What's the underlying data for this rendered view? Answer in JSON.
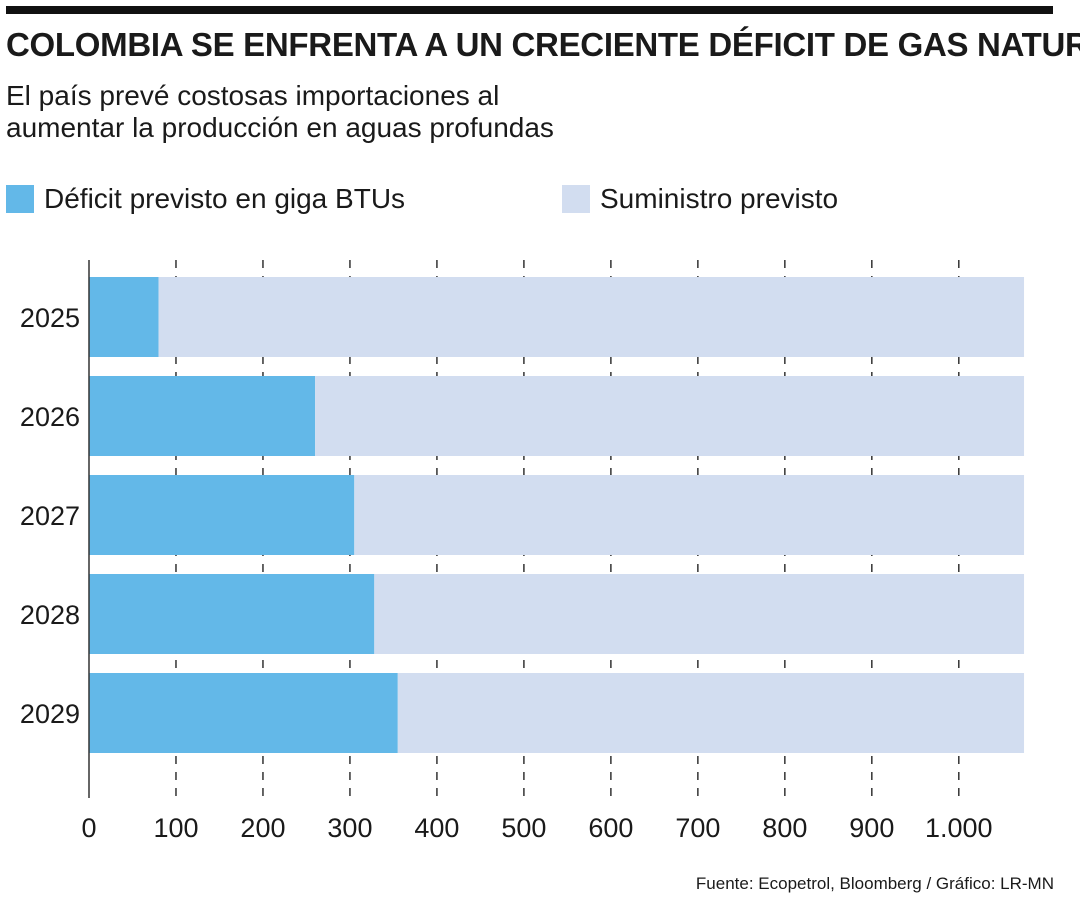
{
  "header": {
    "title": "COLOMBIA SE ENFRENTA A UN CRECIENTE DÉFICIT DE GAS NATURAL",
    "subtitle_line1": "El país prevé costosas importaciones al",
    "subtitle_line2": "aumentar la producción en aguas profundas"
  },
  "legend": [
    {
      "label": "Déficit previsto en giga BTUs",
      "color": "#63b8e8"
    },
    {
      "label": "Suministro previsto",
      "color": "#d2ddf0"
    }
  ],
  "footer": {
    "source": "Fuente: Ecopetrol, Bloomberg / Gráfico: LR-MN"
  },
  "chart_data": {
    "type": "bar",
    "orientation": "horizontal",
    "stacked": true,
    "categories": [
      "2025",
      "2026",
      "2027",
      "2028",
      "2029"
    ],
    "series": [
      {
        "name": "Déficit previsto en giga BTUs",
        "values": [
          80,
          260,
          305,
          328,
          355
        ]
      },
      {
        "name": "Suministro previsto",
        "values": [
          995,
          815,
          770,
          747,
          720
        ]
      }
    ],
    "xlim": [
      0,
      1075
    ],
    "xticks": [
      0,
      100,
      200,
      300,
      400,
      500,
      600,
      700,
      800,
      900,
      1000
    ],
    "xtick_labels": [
      "0",
      "100",
      "200",
      "300",
      "400",
      "500",
      "600",
      "700",
      "800",
      "900",
      "1.000"
    ],
    "gridlines": "dashed-vertical",
    "title": "",
    "xlabel": "",
    "ylabel": ""
  }
}
